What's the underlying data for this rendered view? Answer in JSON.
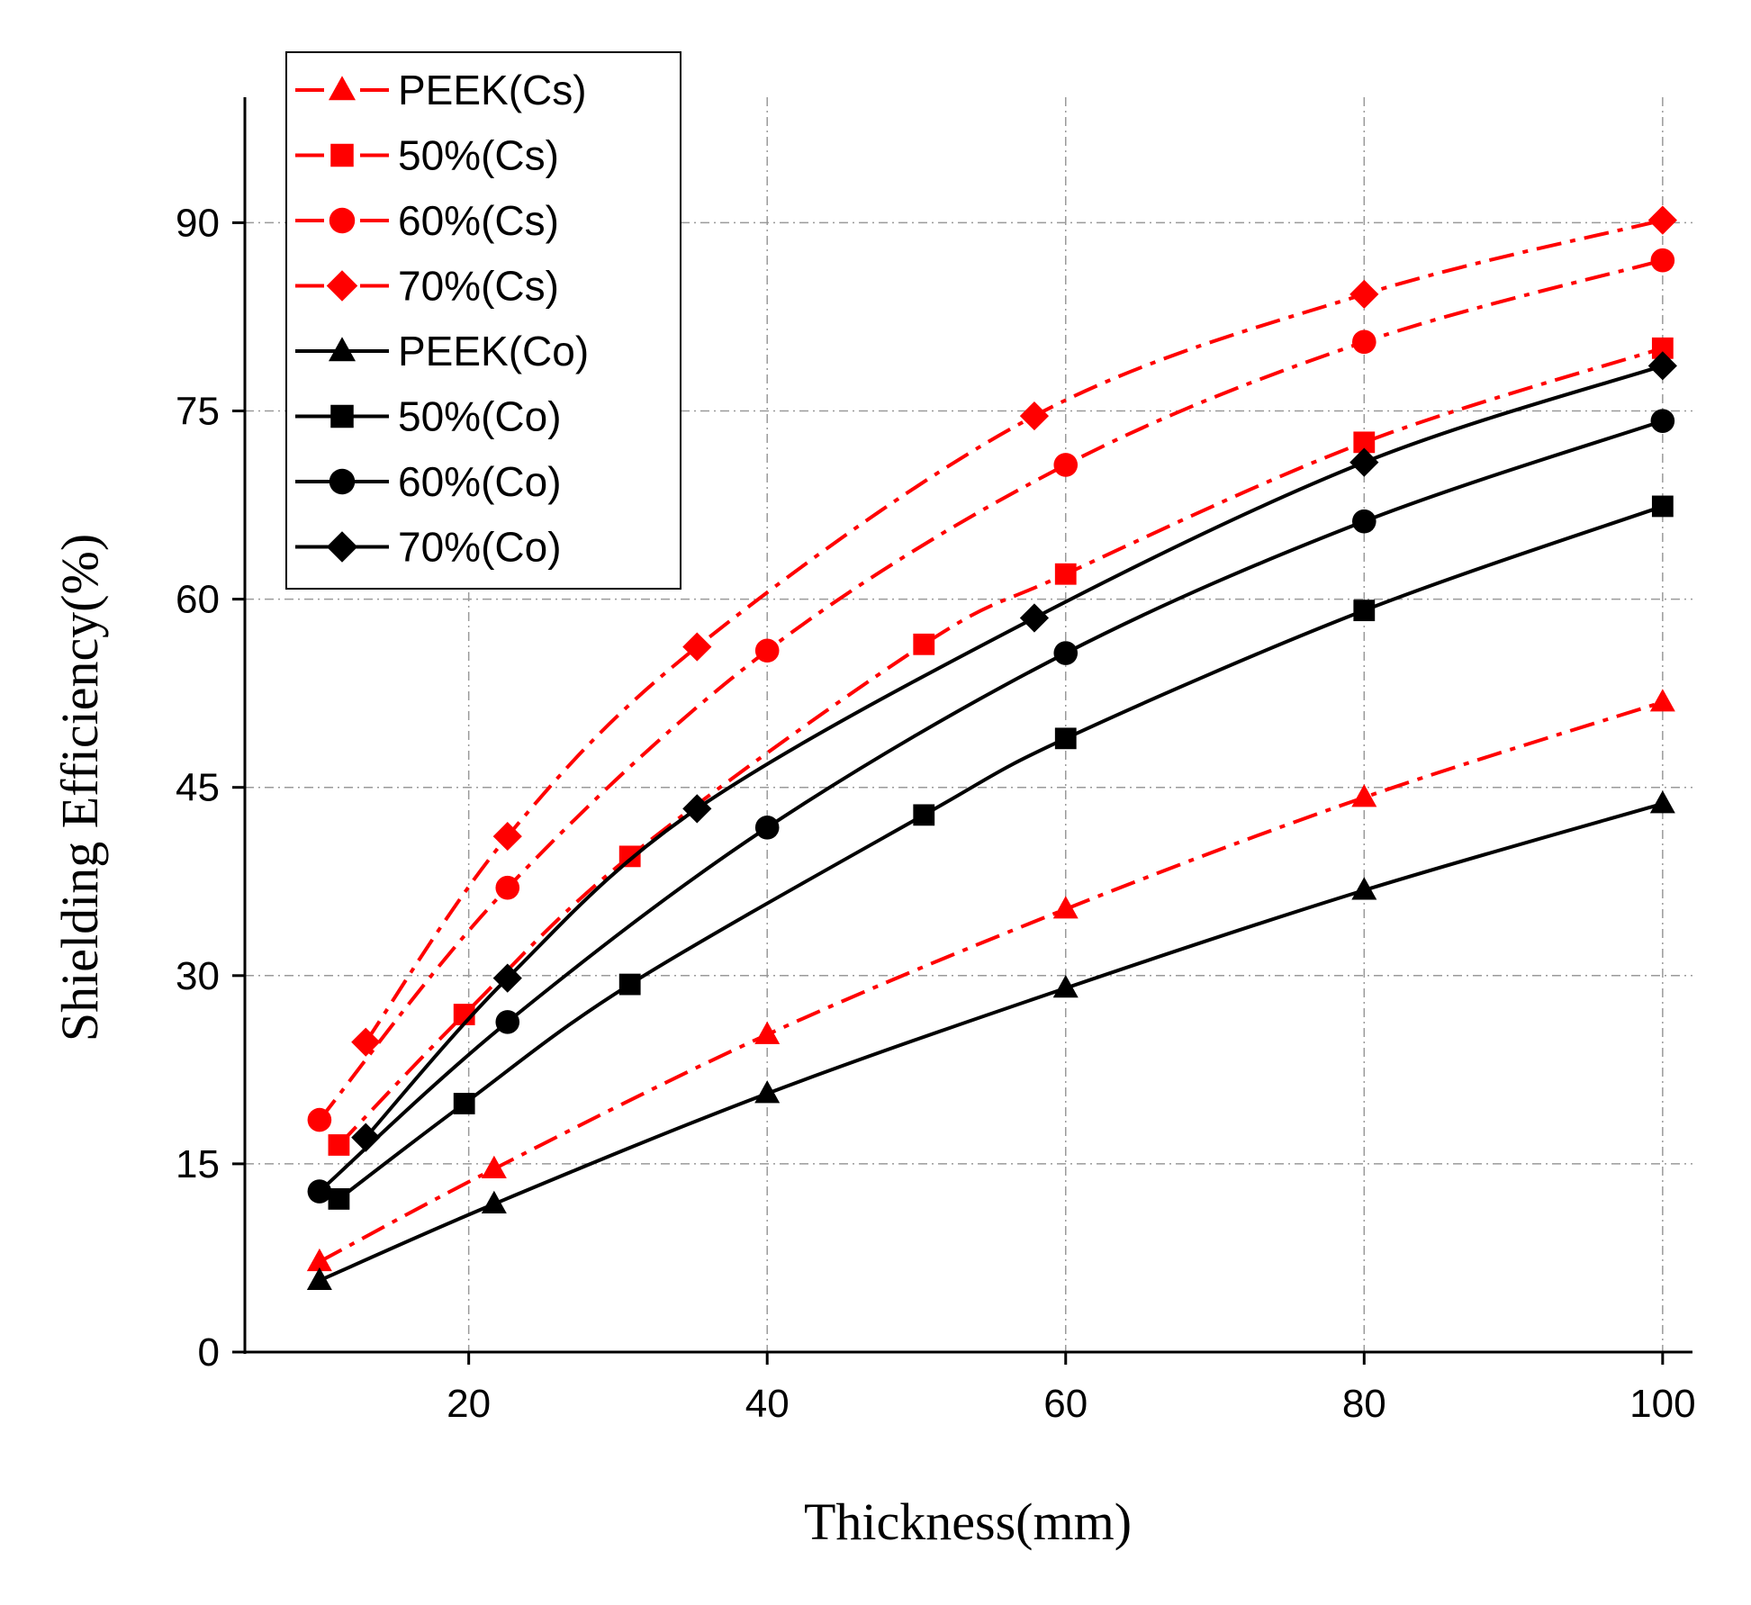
{
  "chart_data": {
    "type": "line",
    "title": "",
    "xlabel": "Thickness(mm)",
    "ylabel": "Shielding Efficiency(%)",
    "xlim": [
      5,
      102
    ],
    "ylim": [
      0,
      100
    ],
    "xticks": [
      20,
      40,
      60,
      80,
      100
    ],
    "yticks": [
      0,
      15,
      30,
      45,
      60,
      75,
      90
    ],
    "grid": true,
    "legend_position": "top-left",
    "colors": {
      "cs": "#ff0000",
      "co": "#000000"
    },
    "series": [
      {
        "name": "PEEK(Cs)",
        "group": "cs",
        "marker": "triangle",
        "x": [
          10,
          21.7,
          40,
          60,
          80,
          100
        ],
        "y": [
          7.2,
          14.6,
          25.3,
          35.3,
          44.2,
          51.8
        ]
      },
      {
        "name": "50%(Cs)",
        "group": "cs",
        "marker": "square",
        "x": [
          11.3,
          19.7,
          30.8,
          50.5,
          60,
          80,
          100
        ],
        "y": [
          16.5,
          26.9,
          39.5,
          56.4,
          62.0,
          72.5,
          80.0
        ]
      },
      {
        "name": "60%(Cs)",
        "group": "cs",
        "marker": "circle",
        "x": [
          10,
          22.6,
          40,
          60,
          80,
          100
        ],
        "y": [
          18.5,
          37.0,
          55.9,
          70.7,
          80.5,
          87.0
        ]
      },
      {
        "name": "70%(Cs)",
        "group": "cs",
        "marker": "diamond",
        "x": [
          13.1,
          22.6,
          35.3,
          57.9,
          80,
          100
        ],
        "y": [
          24.7,
          41.1,
          56.2,
          74.6,
          84.3,
          90.2
        ]
      },
      {
        "name": "PEEK(Co)",
        "group": "co",
        "marker": "triangle",
        "x": [
          10,
          21.7,
          40,
          60,
          80,
          100
        ],
        "y": [
          5.7,
          11.8,
          20.6,
          29.0,
          36.8,
          43.7
        ]
      },
      {
        "name": "50%(Co)",
        "group": "co",
        "marker": "square",
        "x": [
          11.3,
          19.7,
          30.8,
          50.5,
          60,
          80,
          100
        ],
        "y": [
          12.2,
          19.8,
          29.3,
          42.8,
          48.9,
          59.1,
          67.4
        ]
      },
      {
        "name": "60%(Co)",
        "group": "co",
        "marker": "circle",
        "x": [
          10,
          22.6,
          40,
          60,
          80,
          100
        ],
        "y": [
          12.8,
          26.3,
          41.8,
          55.7,
          66.2,
          74.2
        ]
      },
      {
        "name": "70%(Co)",
        "group": "co",
        "marker": "diamond",
        "x": [
          13.1,
          22.6,
          35.3,
          57.9,
          80,
          100
        ],
        "y": [
          17.1,
          29.8,
          43.3,
          58.5,
          70.9,
          78.6
        ]
      }
    ]
  }
}
